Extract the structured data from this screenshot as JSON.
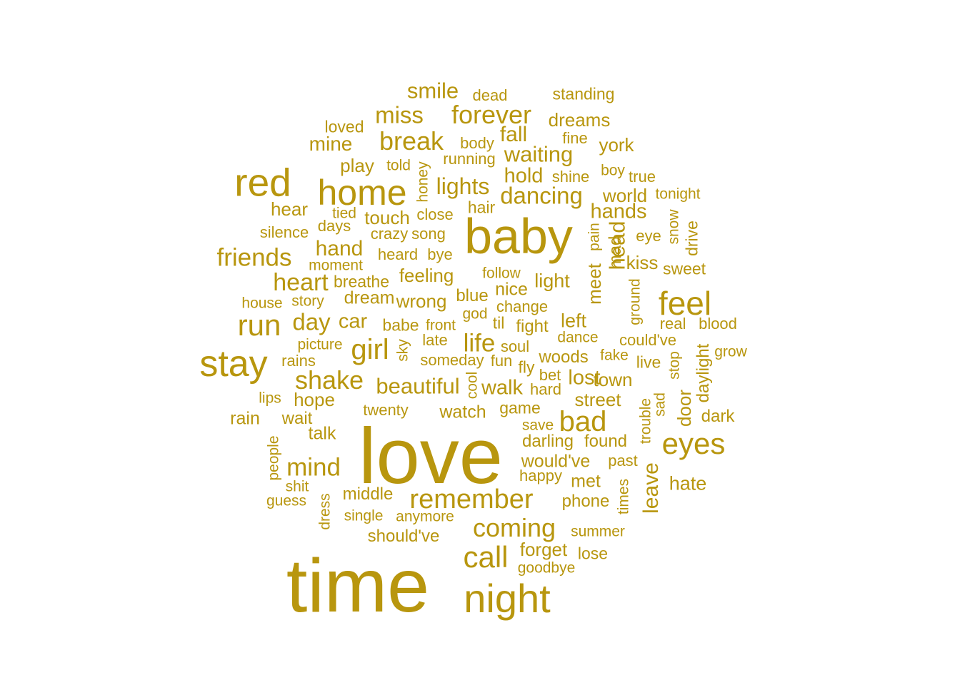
{
  "cloud": {
    "color": "#b8960e",
    "words": [
      "smile",
      "dead",
      "standing",
      "miss",
      "forever",
      "dreams",
      "loved",
      "fall",
      "fine",
      "mine",
      "break",
      "body",
      "york",
      "play",
      "told",
      "honey",
      "running",
      "waiting",
      "red",
      "home",
      "lights",
      "hold",
      "shine",
      "boy",
      "true",
      "dancing",
      "world",
      "tonight",
      "hear",
      "tied",
      "touch",
      "close",
      "hair",
      "hands",
      "snow",
      "drive",
      "silence",
      "days",
      "crazy",
      "song",
      "baby",
      "pain",
      "mad",
      "head",
      "eye",
      "friends",
      "hand",
      "heard",
      "bye",
      "meet",
      "kiss",
      "moment",
      "sweet",
      "heart",
      "breathe",
      "feeling",
      "follow",
      "light",
      "ground",
      "house",
      "story",
      "dream",
      "wrong",
      "blue",
      "nice",
      "feel",
      "run",
      "day",
      "car",
      "change",
      "god",
      "left",
      "babe",
      "front",
      "til",
      "fight",
      "real",
      "blood",
      "picture",
      "late",
      "life",
      "dance",
      "could've",
      "stay",
      "girl",
      "sky",
      "soul",
      "woods",
      "fake",
      "grow",
      "rains",
      "someday",
      "fun",
      "fly",
      "live",
      "stop",
      "daylight",
      "shake",
      "beautiful",
      "bet",
      "lost",
      "town",
      "lips",
      "hope",
      "cool",
      "walk",
      "hard",
      "street",
      "sad",
      "door",
      "wait",
      "twenty",
      "watch",
      "game",
      "trouble",
      "rain",
      "save",
      "bad",
      "dark",
      "talk",
      "darling",
      "found",
      "eyes",
      "people",
      "love",
      "mind",
      "would've",
      "past",
      "happy",
      "leave",
      "shit",
      "met",
      "hate",
      "middle",
      "remember",
      "dress",
      "guess",
      "phone",
      "times",
      "single",
      "anymore",
      "coming",
      "summer",
      "should've",
      "forget",
      "call",
      "lose",
      "goodbye",
      "time",
      "night"
    ]
  }
}
